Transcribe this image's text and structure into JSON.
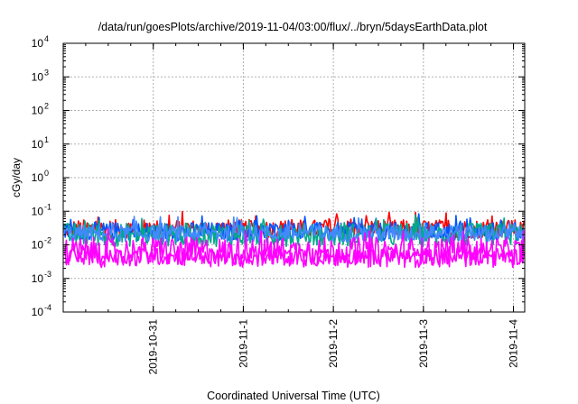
{
  "chart_data": {
    "type": "line",
    "title": "/data/run/goesPlots/archive/2019-11-04/03:00/flux/../bryn/5daysEarthData.plot",
    "xlabel": "Coordinated Universal Time (UTC)",
    "ylabel": "cGy/day",
    "yscale": "log",
    "ylim": [
      0.0001,
      10000
    ],
    "y_ticks": [
      {
        "value": 0.0001,
        "mantissa": "10",
        "exp": "-4"
      },
      {
        "value": 0.001,
        "mantissa": "10",
        "exp": "-3"
      },
      {
        "value": 0.01,
        "mantissa": "10",
        "exp": "-2"
      },
      {
        "value": 0.1,
        "mantissa": "10",
        "exp": "-1"
      },
      {
        "value": 1,
        "mantissa": "10",
        "exp": "0"
      },
      {
        "value": 10,
        "mantissa": "10",
        "exp": "1"
      },
      {
        "value": 100,
        "mantissa": "10",
        "exp": "2"
      },
      {
        "value": 1000,
        "mantissa": "10",
        "exp": "3"
      },
      {
        "value": 10000,
        "mantissa": "10",
        "exp": "4"
      }
    ],
    "xlim": [
      "2019-10-30T00:00",
      "2019-11-04T03:00"
    ],
    "x_ticks": [
      {
        "value": "2019-10-31T00:00",
        "label": "2019-10-31"
      },
      {
        "value": "2019-11-01T00:00",
        "label": "2019-11-1"
      },
      {
        "value": "2019-11-02T00:00",
        "label": "2019-11-2"
      },
      {
        "value": "2019-11-03T00:00",
        "label": "2019-11-3"
      },
      {
        "value": "2019-11-04T00:00",
        "label": "2019-11-4"
      }
    ],
    "grid": true,
    "series": [
      {
        "color": "#ff0000",
        "level": 0.03,
        "noise": 0.55
      },
      {
        "color": "#0055ff",
        "level": 0.025,
        "noise": 0.55
      },
      {
        "color": "#00aa88",
        "level": 0.02,
        "noise": 0.7
      },
      {
        "color": "#4488ff",
        "level": 0.022,
        "noise": 0.5
      },
      {
        "color": "#ff00ff",
        "level": 0.006,
        "noise": 0.9
      },
      {
        "color": "#ff00ff",
        "level": 0.0045,
        "noise": 0.5
      }
    ]
  }
}
